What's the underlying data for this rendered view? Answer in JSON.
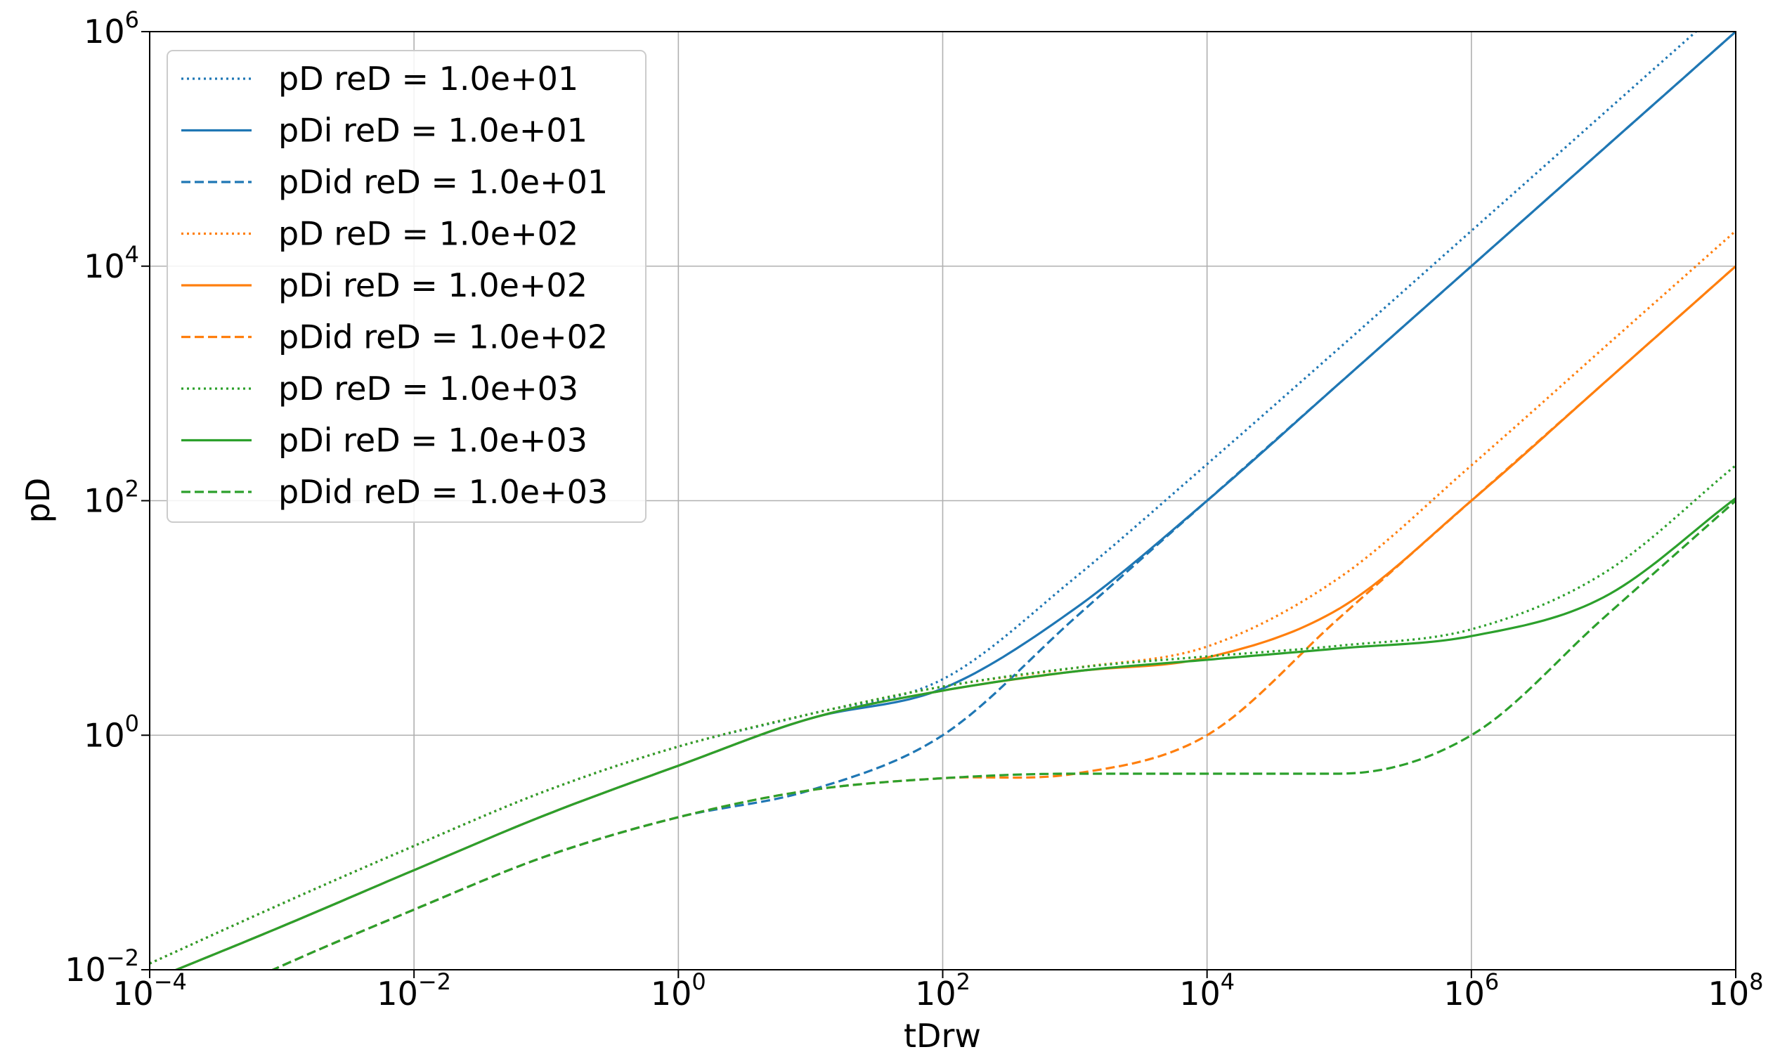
{
  "chart_data": {
    "type": "line",
    "title": "",
    "xlabel": "tDrw",
    "ylabel": "pD",
    "xscale": "log",
    "yscale": "log",
    "xlim": [
      0.0001,
      100000000
    ],
    "ylim": [
      0.01,
      1000000
    ],
    "grid": true,
    "legend_position": "upper-left",
    "x_ticks": [
      {
        "base": "10",
        "exp": "−4"
      },
      {
        "base": "10",
        "exp": "−2"
      },
      {
        "base": "10",
        "exp": "0"
      },
      {
        "base": "10",
        "exp": "2"
      },
      {
        "base": "10",
        "exp": "4"
      },
      {
        "base": "10",
        "exp": "6"
      },
      {
        "base": "10",
        "exp": "8"
      }
    ],
    "y_ticks": [
      {
        "base": "10",
        "exp": "−2"
      },
      {
        "base": "10",
        "exp": "0"
      },
      {
        "base": "10",
        "exp": "2"
      },
      {
        "base": "10",
        "exp": "4"
      },
      {
        "base": "10",
        "exp": "6"
      }
    ],
    "x": [
      0.0001,
      0.001,
      0.01,
      0.1,
      1,
      10,
      100,
      1000,
      10000,
      100000,
      1000000,
      10000000,
      100000000
    ],
    "series": [
      {
        "name": "pD reD = 1.0e+01",
        "color": "#1f77b4",
        "style": "dotted",
        "values": [
          0.0113,
          0.0366,
          0.1137,
          0.336,
          0.8,
          1.52,
          3.0,
          22.0,
          205,
          2000,
          20000,
          200000,
          2000000
        ]
      },
      {
        "name": "pDi reD = 1.0e+01",
        "color": "#1f77b4",
        "style": "solid",
        "values": [
          0.00807,
          0.0234,
          0.0707,
          0.21,
          0.55,
          1.39,
          2.5,
          12.0,
          100,
          1000,
          10000,
          100000,
          1000000
        ]
      },
      {
        "name": "pDid reD = 1.0e+01",
        "color": "#1f77b4",
        "style": "dashed",
        "values": [
          0.0032,
          0.0108,
          0.0326,
          0.093,
          0.2,
          0.34,
          1.0,
          10.0,
          100,
          1000,
          10000,
          100000,
          1000000
        ]
      },
      {
        "name": "pD reD = 1.0e+02",
        "color": "#ff7f0e",
        "style": "dotted",
        "values": [
          0.0113,
          0.0366,
          0.1137,
          0.336,
          0.8,
          1.52,
          2.6,
          3.75,
          5.7,
          22,
          200,
          2000,
          20000
        ]
      },
      {
        "name": "pDi reD = 1.0e+02",
        "color": "#ff7f0e",
        "style": "solid",
        "values": [
          0.00807,
          0.0234,
          0.0707,
          0.21,
          0.55,
          1.39,
          2.4,
          3.5,
          4.6,
          12,
          100,
          1000,
          10000
        ]
      },
      {
        "name": "pDid reD = 1.0e+02",
        "color": "#ff7f0e",
        "style": "dashed",
        "values": [
          0.0032,
          0.0108,
          0.0326,
          0.093,
          0.2,
          0.34,
          0.43,
          0.47,
          1.0,
          10,
          100,
          1000,
          10000
        ]
      },
      {
        "name": "pD reD = 1.0e+03",
        "color": "#2ca02c",
        "style": "dotted",
        "values": [
          0.0113,
          0.0366,
          0.1137,
          0.336,
          0.8,
          1.52,
          2.6,
          3.75,
          4.7,
          5.8,
          8.0,
          24,
          200
        ]
      },
      {
        "name": "pDi reD = 1.0e+03",
        "color": "#2ca02c",
        "style": "solid",
        "values": [
          0.00807,
          0.0234,
          0.0707,
          0.21,
          0.55,
          1.39,
          2.4,
          3.5,
          4.4,
          5.5,
          7.0,
          15,
          105
        ]
      },
      {
        "name": "pDid reD = 1.0e+03",
        "color": "#2ca02c",
        "style": "dashed",
        "values": [
          0.0032,
          0.0108,
          0.0326,
          0.093,
          0.2,
          0.34,
          0.43,
          0.47,
          0.47,
          0.47,
          1.0,
          10,
          100
        ]
      }
    ]
  }
}
